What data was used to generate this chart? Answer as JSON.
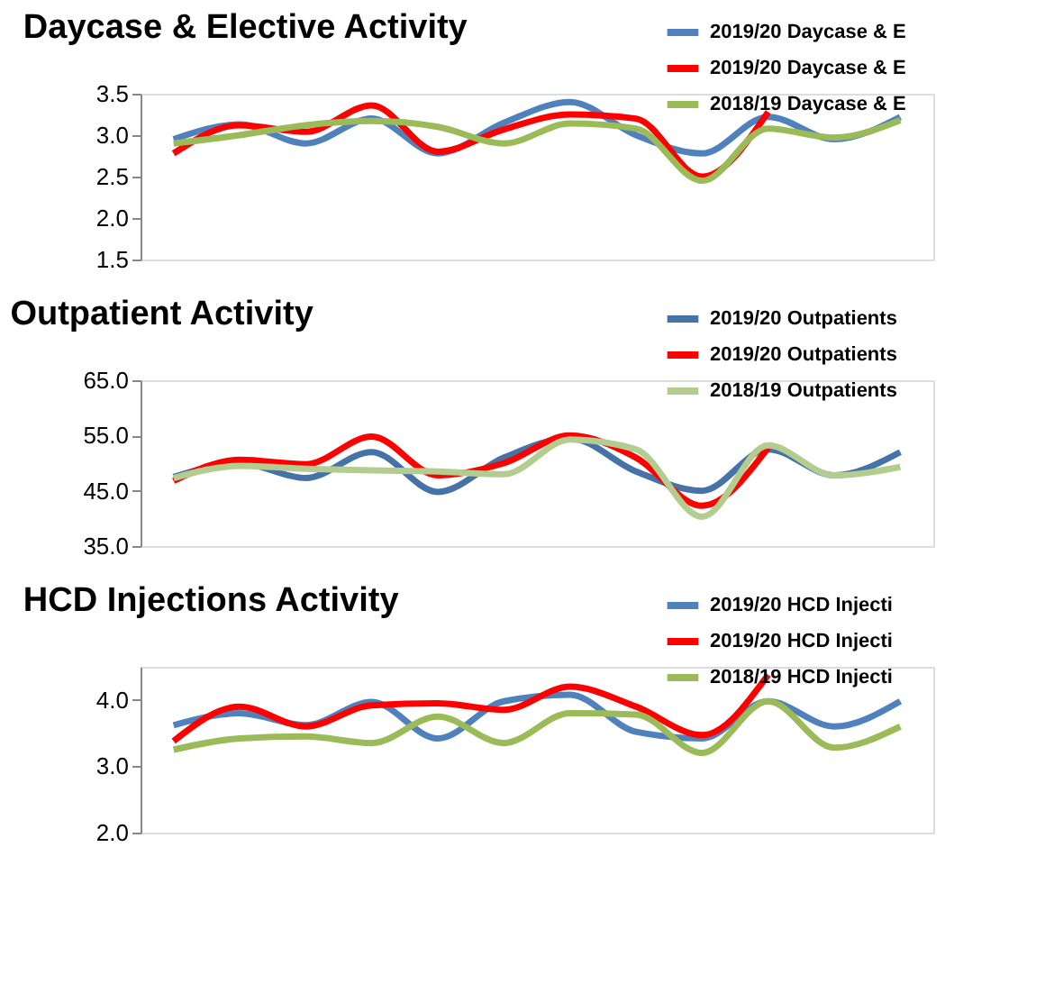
{
  "chart_data": [
    {
      "type": "line",
      "title": "Daycase & Elective Activity",
      "categories": [
        null,
        null,
        null,
        null,
        null,
        null,
        null,
        null,
        null,
        null,
        null,
        null
      ],
      "ylim": [
        1.5,
        3.5
      ],
      "yticks": [
        {
          "value": 1.5,
          "label": "1.5"
        },
        {
          "value": 2,
          "label": "2.0"
        },
        {
          "value": 2.5,
          "label": "2.5"
        },
        {
          "value": 3,
          "label": "3.0"
        },
        {
          "value": 3.5,
          "label": "3.5"
        }
      ],
      "grid": false,
      "legend": "top right",
      "tick_labels": "y",
      "marker": "none",
      "line_style": "solid",
      "series": [
        {
          "name": "2019/20 Daycase & E",
          "color": "#4f81bd",
          "values": [
            2.95,
            3.13,
            2.9,
            3.2,
            2.78,
            3.15,
            3.4,
            3.0,
            2.78,
            3.22,
            2.95,
            3.22
          ]
        },
        {
          "name": "2019/20 Daycase & E",
          "color": "#ff0000",
          "values": [
            2.78,
            3.12,
            3.04,
            3.36,
            2.8,
            3.07,
            3.25,
            3.2,
            2.5,
            3.28,
            null,
            null
          ]
        },
        {
          "name": "2018/19 Daycase & E",
          "color": "#9bbb59",
          "values": [
            2.9,
            3.0,
            3.12,
            3.17,
            3.1,
            2.9,
            3.14,
            3.08,
            2.45,
            3.08,
            2.97,
            3.18
          ]
        }
      ]
    },
    {
      "type": "line",
      "title": "Outpatient Activity",
      "categories": [
        null,
        null,
        null,
        null,
        null,
        null,
        null,
        null,
        null,
        null,
        null,
        null
      ],
      "ylim": [
        35,
        65
      ],
      "yticks": [
        {
          "value": 35,
          "label": "35.0"
        },
        {
          "value": 45,
          "label": "45.0"
        },
        {
          "value": 55,
          "label": "55.0"
        },
        {
          "value": 65,
          "label": "65.0"
        }
      ],
      "grid": false,
      "legend": "top right",
      "tick_labels": "y",
      "marker": "none",
      "line_style": "solid",
      "series": [
        {
          "name": "2019/20 Outpatients",
          "color": "#4572a7",
          "values": [
            47.5,
            50,
            47.3,
            52,
            44.8,
            51,
            54.5,
            48.5,
            45,
            52.5,
            47.8,
            52
          ]
        },
        {
          "name": "2019/20 Outpatients",
          "color": "#ff0000",
          "values": [
            46.8,
            50.6,
            49.8,
            54.8,
            47.8,
            50,
            55,
            51,
            42.3,
            52.8,
            null,
            null
          ]
        },
        {
          "name": "2018/19 Outpatients",
          "color": "#b3cc8f",
          "values": [
            47.3,
            49.5,
            49,
            48.7,
            48.5,
            48,
            54.3,
            52.5,
            40.3,
            53.2,
            47.8,
            49.3
          ]
        }
      ]
    },
    {
      "type": "line",
      "title": "HCD Injections Activity",
      "categories": [
        null,
        null,
        null,
        null,
        null,
        null,
        null,
        null,
        null,
        null,
        null,
        null
      ],
      "ylim": [
        2,
        4.5
      ],
      "yticks": [
        {
          "value": 2,
          "label": "2.0"
        },
        {
          "value": 3,
          "label": "3.0"
        },
        {
          "value": 4,
          "label": "4.0"
        }
      ],
      "grid": false,
      "legend": "top right",
      "tick_labels": "y",
      "marker": "none",
      "line_style": "solid",
      "series": [
        {
          "name": "2019/20 HCD Injecti",
          "color": "#4f81bd",
          "values": [
            3.62,
            3.8,
            3.62,
            3.97,
            3.42,
            3.98,
            4.08,
            3.52,
            3.42,
            3.98,
            3.6,
            3.98
          ]
        },
        {
          "name": "2019/20 HCD Injecti",
          "color": "#ff0000",
          "values": [
            3.38,
            3.9,
            3.6,
            3.92,
            3.95,
            3.85,
            4.2,
            3.9,
            3.47,
            4.38,
            null,
            null
          ]
        },
        {
          "name": "2018/19 HCD Injecti",
          "color": "#9bbb59",
          "values": [
            3.25,
            3.42,
            3.45,
            3.35,
            3.75,
            3.35,
            3.8,
            3.78,
            3.2,
            3.98,
            3.28,
            3.6
          ]
        }
      ]
    }
  ]
}
